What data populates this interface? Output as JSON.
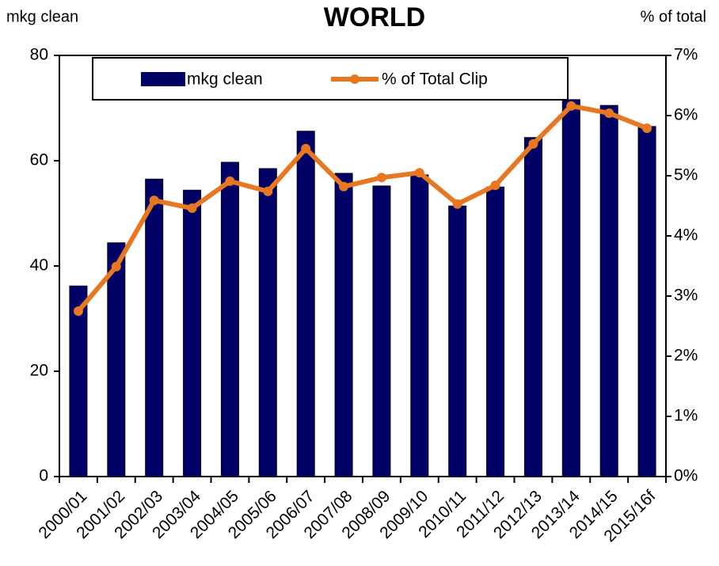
{
  "chart_data": {
    "type": "bar_line",
    "title": "WORLD",
    "y_label": "mkg clean",
    "y2_label": "% of total",
    "categories": [
      "2000/01",
      "2001/02",
      "2002/03",
      "2003/04",
      "2004/05",
      "2005/06",
      "2006/07",
      "2007/08",
      "2008/09",
      "2009/10",
      "2010/11",
      "2011/12",
      "2012/13",
      "2013/14",
      "2014/15",
      "2015/16f"
    ],
    "series": [
      {
        "name": "mkg clean",
        "type": "bar",
        "color": "#000066",
        "values": [
          36.2,
          44.4,
          56.5,
          54.4,
          59.7,
          58.5,
          65.6,
          57.6,
          55.2,
          57.3,
          51.4,
          55.0,
          64.4,
          71.6,
          70.5,
          66.5
        ]
      },
      {
        "name": "% of Total Clip",
        "type": "line",
        "axis": "y2",
        "color": "#E87722",
        "values": [
          2.75,
          3.49,
          4.59,
          4.46,
          4.91,
          4.74,
          5.45,
          4.82,
          4.97,
          5.05,
          4.53,
          4.84,
          5.53,
          6.16,
          6.04,
          5.79
        ]
      }
    ],
    "ylim": [
      0,
      80
    ],
    "yticks": [
      0,
      20,
      40,
      60,
      80
    ],
    "y2lim": [
      0,
      7
    ],
    "y2ticks": [
      {
        "value": 0,
        "label": "0%"
      },
      {
        "value": 1,
        "label": "1%"
      },
      {
        "value": 2,
        "label": "2%"
      },
      {
        "value": 3,
        "label": "3%"
      },
      {
        "value": 4,
        "label": "4%"
      },
      {
        "value": 5,
        "label": "5%"
      },
      {
        "value": 6,
        "label": "6%"
      },
      {
        "value": 7,
        "label": "7%"
      }
    ],
    "legend": "top",
    "grid": false
  }
}
